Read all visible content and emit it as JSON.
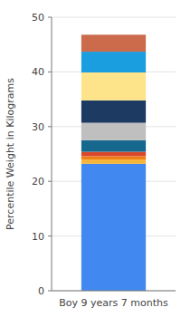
{
  "chart_data": {
    "type": "bar",
    "stacked": true,
    "grid": true,
    "y_label": "Percentile Weight in Kilograms",
    "categories": [
      "Boy 9 years 7 months"
    ],
    "ylim": [
      0,
      50
    ],
    "yticks": [
      0,
      10,
      20,
      30,
      40,
      50
    ],
    "series": [
      {
        "color": "#4189f0",
        "values": [
          23.2
        ]
      },
      {
        "color": "#f5b53b",
        "values": [
          0.8
        ]
      },
      {
        "color": "#ef7f1a",
        "values": [
          0.6
        ]
      },
      {
        "color": "#d9482b",
        "values": [
          0.8
        ]
      },
      {
        "color": "#17688f",
        "values": [
          2.1
        ]
      },
      {
        "color": "#bfbfbf",
        "values": [
          3.2
        ]
      },
      {
        "color": "#1d3a63",
        "values": [
          4.1
        ]
      },
      {
        "color": "#fde38a",
        "values": [
          5.1
        ]
      },
      {
        "color": "#1a9ee0",
        "values": [
          3.8
        ]
      },
      {
        "color": "#cc6a4c",
        "values": [
          3.1
        ]
      }
    ]
  }
}
